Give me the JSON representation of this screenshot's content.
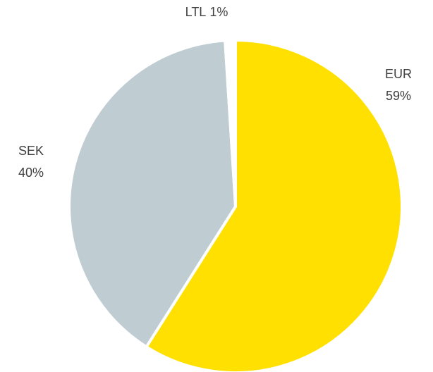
{
  "chart_data": {
    "type": "pie",
    "categories": [
      "EUR",
      "SEK",
      "LTL"
    ],
    "values": [
      59,
      40,
      1
    ],
    "value_labels": [
      "59%",
      "40%",
      "1%"
    ],
    "colors": [
      "#ffe000",
      "#bfcdd3",
      "#ffffff"
    ]
  }
}
